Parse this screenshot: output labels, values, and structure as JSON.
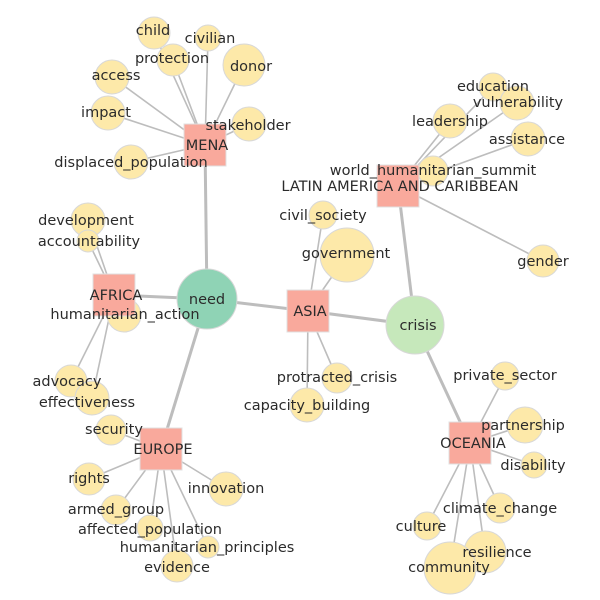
{
  "colors": {
    "topic_node": "#fde9a9",
    "region_node": "#f9a99c",
    "need_node": "#8fd3b5",
    "crisis_node": "#c6e8bb",
    "edge": "#bdbdbd"
  },
  "hubs": [
    {
      "id": "need",
      "label": "need"
    },
    {
      "id": "crisis",
      "label": "crisis"
    }
  ],
  "regions": [
    {
      "id": "MENA",
      "label": "MENA"
    },
    {
      "id": "AFRICA",
      "label": "AFRICA"
    },
    {
      "id": "ASIA",
      "label": "ASIA"
    },
    {
      "id": "EUROPE",
      "label": "EUROPE"
    },
    {
      "id": "LATAM",
      "label": "LATIN AMERICA AND CARIBBEAN"
    },
    {
      "id": "OCEANIA",
      "label": "OCEANIA"
    }
  ],
  "topics": [
    {
      "id": "child",
      "label": "child"
    },
    {
      "id": "civilian",
      "label": "civilian"
    },
    {
      "id": "protection",
      "label": "protection"
    },
    {
      "id": "donor",
      "label": "donor"
    },
    {
      "id": "access",
      "label": "access"
    },
    {
      "id": "impact",
      "label": "impact"
    },
    {
      "id": "stakeholder",
      "label": "stakeholder"
    },
    {
      "id": "displaced_population",
      "label": "displaced_population"
    },
    {
      "id": "development",
      "label": "development"
    },
    {
      "id": "accountability",
      "label": "accountability"
    },
    {
      "id": "humanitarian_action",
      "label": "humanitarian_action"
    },
    {
      "id": "advocacy",
      "label": "advocacy"
    },
    {
      "id": "effectiveness",
      "label": "effectiveness"
    },
    {
      "id": "security",
      "label": "security"
    },
    {
      "id": "rights",
      "label": "rights"
    },
    {
      "id": "innovation",
      "label": "innovation"
    },
    {
      "id": "armed_group",
      "label": "armed_group"
    },
    {
      "id": "affected_population",
      "label": "affected_population"
    },
    {
      "id": "humanitarian_principles",
      "label": "humanitarian_principles"
    },
    {
      "id": "evidence",
      "label": "evidence"
    },
    {
      "id": "civil_society",
      "label": "civil_society"
    },
    {
      "id": "government",
      "label": "government"
    },
    {
      "id": "protracted_crisis",
      "label": "protracted_crisis"
    },
    {
      "id": "capacity_building",
      "label": "capacity_building"
    },
    {
      "id": "education",
      "label": "education"
    },
    {
      "id": "vulnerability",
      "label": "vulnerability"
    },
    {
      "id": "leadership",
      "label": "leadership"
    },
    {
      "id": "assistance",
      "label": "assistance"
    },
    {
      "id": "world_humanitarian_summit",
      "label": "world_humanitarian_summit"
    },
    {
      "id": "gender",
      "label": "gender"
    },
    {
      "id": "private_sector",
      "label": "private_sector"
    },
    {
      "id": "partnership",
      "label": "partnership"
    },
    {
      "id": "disability",
      "label": "disability"
    },
    {
      "id": "climate_change",
      "label": "climate_change"
    },
    {
      "id": "culture",
      "label": "culture"
    },
    {
      "id": "resilience",
      "label": "resilience"
    },
    {
      "id": "community",
      "label": "community"
    }
  ],
  "edges": [
    [
      "need",
      "MENA"
    ],
    [
      "need",
      "AFRICA"
    ],
    [
      "need",
      "ASIA"
    ],
    [
      "need",
      "EUROPE"
    ],
    [
      "crisis",
      "ASIA"
    ],
    [
      "crisis",
      "LATAM"
    ],
    [
      "crisis",
      "OCEANIA"
    ],
    [
      "MENA",
      "child"
    ],
    [
      "MENA",
      "civilian"
    ],
    [
      "MENA",
      "protection"
    ],
    [
      "MENA",
      "donor"
    ],
    [
      "MENA",
      "access"
    ],
    [
      "MENA",
      "impact"
    ],
    [
      "MENA",
      "stakeholder"
    ],
    [
      "MENA",
      "displaced_population"
    ],
    [
      "AFRICA",
      "development"
    ],
    [
      "AFRICA",
      "accountability"
    ],
    [
      "AFRICA",
      "humanitarian_action"
    ],
    [
      "AFRICA",
      "advocacy"
    ],
    [
      "AFRICA",
      "effectiveness"
    ],
    [
      "EUROPE",
      "security"
    ],
    [
      "EUROPE",
      "rights"
    ],
    [
      "EUROPE",
      "innovation"
    ],
    [
      "EUROPE",
      "armed_group"
    ],
    [
      "EUROPE",
      "affected_population"
    ],
    [
      "EUROPE",
      "humanitarian_principles"
    ],
    [
      "EUROPE",
      "evidence"
    ],
    [
      "ASIA",
      "civil_society"
    ],
    [
      "ASIA",
      "government"
    ],
    [
      "ASIA",
      "protracted_crisis"
    ],
    [
      "ASIA",
      "capacity_building"
    ],
    [
      "LATAM",
      "education"
    ],
    [
      "LATAM",
      "vulnerability"
    ],
    [
      "LATAM",
      "leadership"
    ],
    [
      "LATAM",
      "assistance"
    ],
    [
      "LATAM",
      "world_humanitarian_summit"
    ],
    [
      "LATAM",
      "gender"
    ],
    [
      "OCEANIA",
      "private_sector"
    ],
    [
      "OCEANIA",
      "partnership"
    ],
    [
      "OCEANIA",
      "disability"
    ],
    [
      "OCEANIA",
      "climate_change"
    ],
    [
      "OCEANIA",
      "culture"
    ],
    [
      "OCEANIA",
      "resilience"
    ],
    [
      "OCEANIA",
      "community"
    ]
  ]
}
